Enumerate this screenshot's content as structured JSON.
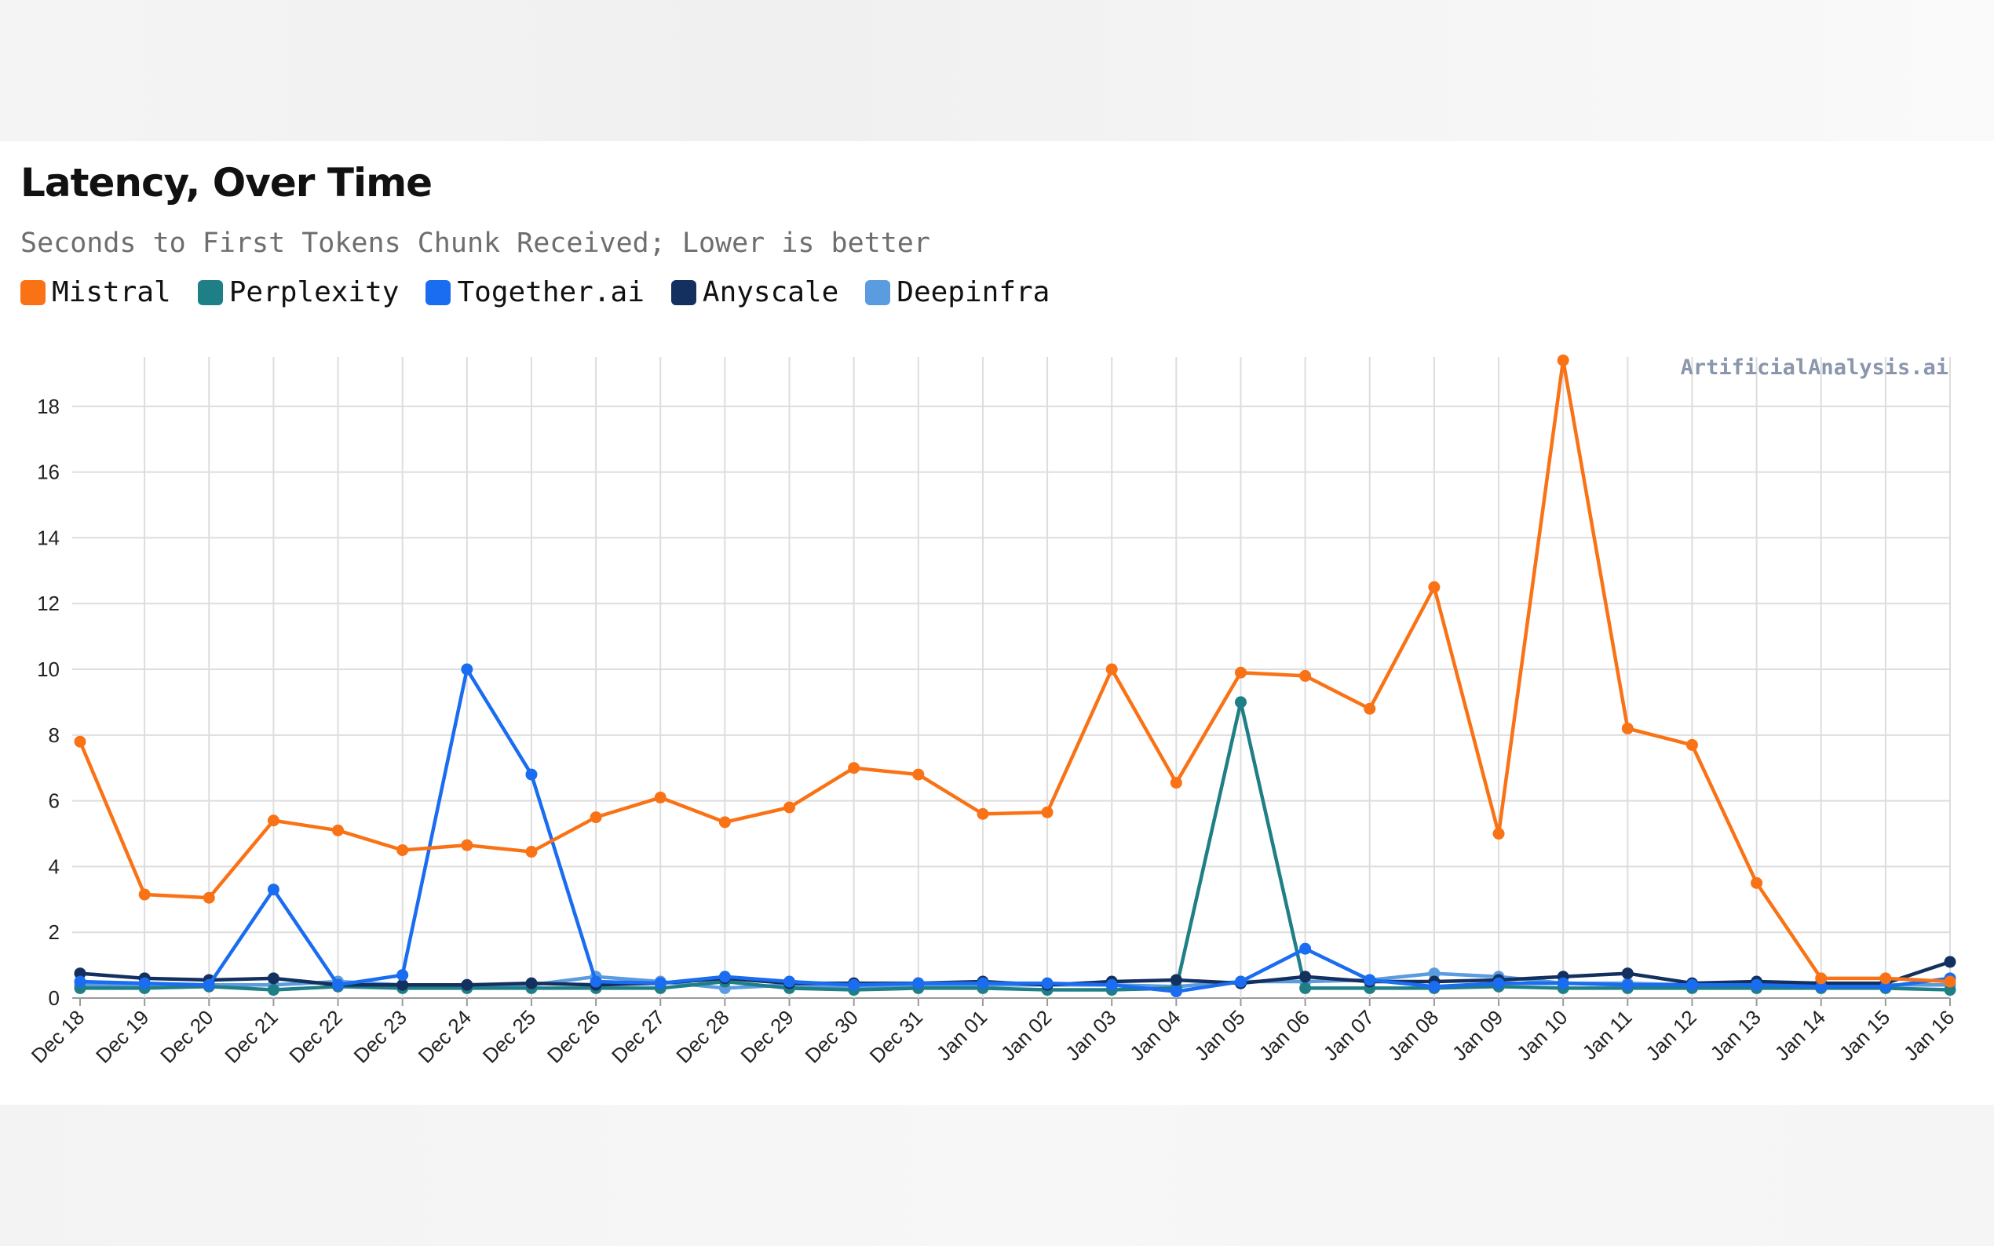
{
  "header": {
    "title": "Latency, Over Time",
    "subtitle": "Seconds to First Tokens Chunk Received; Lower is better"
  },
  "watermark": "ArtificialAnalysis.ai",
  "legend": [
    {
      "label": "Mistral",
      "color": "#f97316"
    },
    {
      "label": "Perplexity",
      "color": "#1f7f86"
    },
    {
      "label": "Together.ai",
      "color": "#1a6cf0"
    },
    {
      "label": "Anyscale",
      "color": "#14305e"
    },
    {
      "label": "Deepinfra",
      "color": "#5b9be0"
    }
  ],
  "chart_data": {
    "type": "line",
    "title": "Latency, Over Time",
    "subtitle": "Seconds to First Tokens Chunk Received; Lower is better",
    "xlabel": "",
    "ylabel": "",
    "ylim": [
      0,
      19.5
    ],
    "yticks": [
      0,
      2,
      4,
      6,
      8,
      10,
      12,
      14,
      16,
      18
    ],
    "grid": true,
    "legend_position": "top-left",
    "categories": [
      "Dec 18",
      "Dec 19",
      "Dec 20",
      "Dec 21",
      "Dec 22",
      "Dec 23",
      "Dec 24",
      "Dec 25",
      "Dec 26",
      "Dec 27",
      "Dec 28",
      "Dec 29",
      "Dec 30",
      "Dec 31",
      "Jan 01",
      "Jan 02",
      "Jan 03",
      "Jan 04",
      "Jan 05",
      "Jan 06",
      "Jan 07",
      "Jan 08",
      "Jan 09",
      "Jan 10",
      "Jan 11",
      "Jan 12",
      "Jan 13",
      "Jan 14",
      "Jan 15",
      "Jan 16"
    ],
    "series": [
      {
        "name": "Deepinfra",
        "color": "#5b9be0",
        "values": [
          0.4,
          0.4,
          0.4,
          0.4,
          0.5,
          0.4,
          0.4,
          0.4,
          0.65,
          0.5,
          0.3,
          0.4,
          0.35,
          0.4,
          0.4,
          0.4,
          0.4,
          0.35,
          0.5,
          0.5,
          0.55,
          0.75,
          0.65,
          0.45,
          0.45,
          0.4,
          0.4,
          0.4,
          0.4,
          0.4
        ]
      },
      {
        "name": "Perplexity",
        "color": "#1f7f86",
        "values": [
          0.3,
          0.3,
          0.35,
          0.25,
          0.35,
          0.3,
          0.3,
          0.3,
          0.3,
          0.3,
          0.5,
          0.3,
          0.25,
          0.3,
          0.3,
          0.25,
          0.25,
          0.3,
          9.0,
          0.3,
          0.3,
          0.3,
          0.35,
          0.3,
          0.3,
          0.3,
          0.3,
          0.3,
          0.3,
          0.25
        ]
      },
      {
        "name": "Anyscale",
        "color": "#14305e",
        "values": [
          0.75,
          0.6,
          0.55,
          0.6,
          0.4,
          0.4,
          0.4,
          0.45,
          0.4,
          0.45,
          0.6,
          0.45,
          0.45,
          0.45,
          0.5,
          0.4,
          0.5,
          0.55,
          0.45,
          0.65,
          0.5,
          0.5,
          0.55,
          0.65,
          0.75,
          0.45,
          0.5,
          0.45,
          0.45,
          1.1
        ]
      },
      {
        "name": "Together.ai",
        "color": "#1a6cf0",
        "values": [
          0.5,
          0.45,
          0.4,
          3.3,
          0.4,
          0.7,
          10.0,
          6.8,
          0.5,
          0.45,
          0.65,
          0.5,
          0.4,
          0.45,
          0.45,
          0.45,
          0.4,
          0.2,
          0.5,
          1.5,
          0.55,
          0.35,
          0.45,
          0.45,
          0.4,
          0.4,
          0.4,
          0.35,
          0.35,
          0.6
        ]
      },
      {
        "name": "Mistral",
        "color": "#f97316",
        "values": [
          7.8,
          3.15,
          3.05,
          5.4,
          5.1,
          4.5,
          4.65,
          4.45,
          5.5,
          6.1,
          5.35,
          5.8,
          7.0,
          6.8,
          5.6,
          5.65,
          10.0,
          6.55,
          9.9,
          9.8,
          8.8,
          12.5,
          5.0,
          19.4,
          8.2,
          7.7,
          3.5,
          0.6,
          0.6,
          0.5
        ]
      }
    ]
  }
}
